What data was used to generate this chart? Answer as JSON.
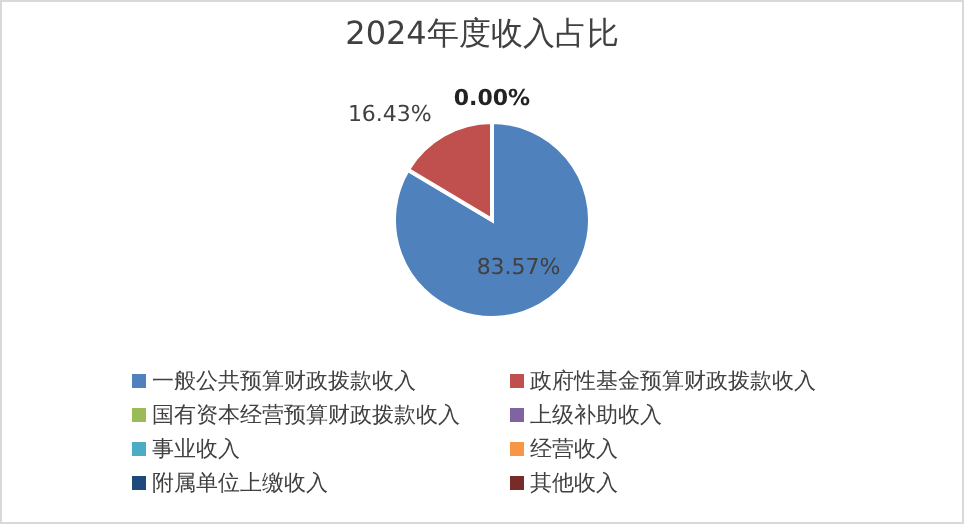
{
  "chart_data": {
    "type": "pie",
    "title": "2024年度收入占比",
    "categories": [
      "一般公共预算财政拨款收入",
      "政府性基金预算财政拨款收入",
      "国有资本经营预算财政拨款收入",
      "上级补助收入",
      "事业收入",
      "经营收入",
      "附属单位上缴收入",
      "其他收入"
    ],
    "values": [
      83.57,
      16.43,
      0,
      0,
      0,
      0,
      0,
      0
    ],
    "colors": [
      "#4f81bd",
      "#c0504d",
      "#9bbb59",
      "#8064a2",
      "#4bacc6",
      "#f79646",
      "#1f497d",
      "#772c2a"
    ],
    "value_labels": [
      "83.57%",
      "16.43%",
      "0.00%",
      null,
      null,
      null,
      null,
      null
    ],
    "legend": "bottom"
  }
}
